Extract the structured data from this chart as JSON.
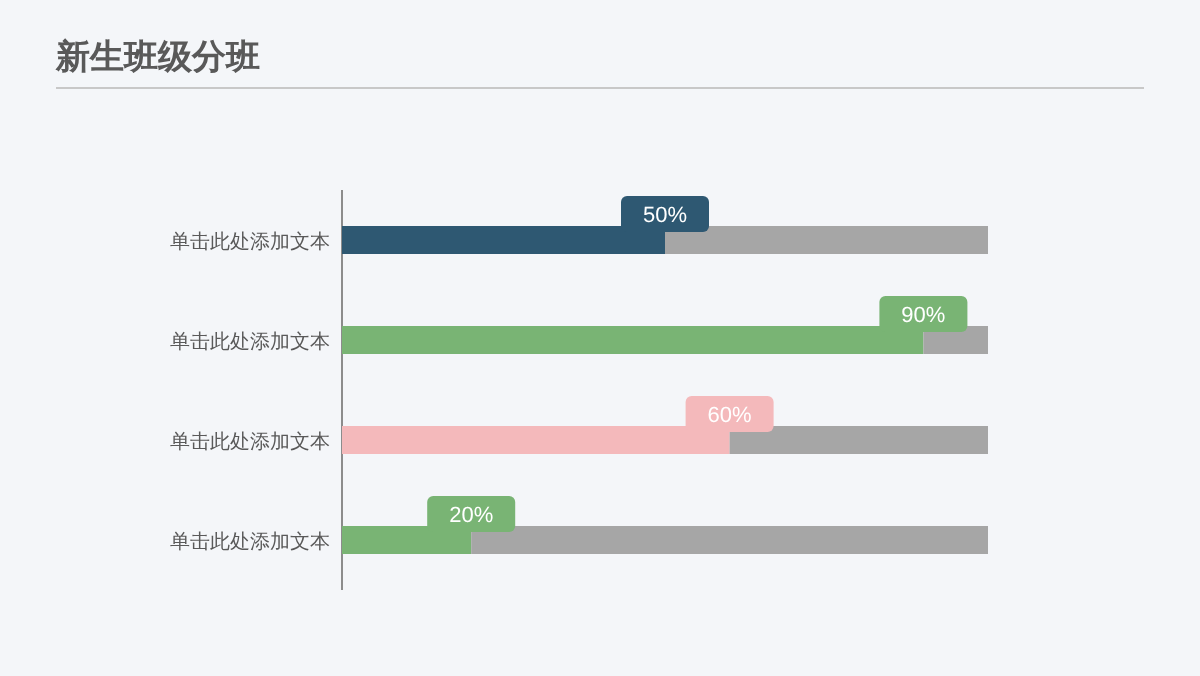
{
  "chart_data": {
    "type": "bar",
    "title": "新生班级分班",
    "orientation": "horizontal",
    "stacked": true,
    "tick_labels": false,
    "xlim": [
      0,
      100
    ],
    "categories": [
      "单击此处添加文本",
      "单击此处添加文本",
      "单击此处添加文本",
      "单击此处添加文本"
    ],
    "series": [
      {
        "colors": [
          "#2e5872",
          "#79b474",
          "#f4b9bb",
          "#79b474"
        ],
        "values": [
          50,
          90,
          60,
          20
        ],
        "value_labels": [
          "50%",
          "90%",
          "60%",
          "20%"
        ]
      },
      {
        "color": "#a6a6a6",
        "values": [
          50,
          10,
          40,
          80
        ]
      }
    ]
  }
}
